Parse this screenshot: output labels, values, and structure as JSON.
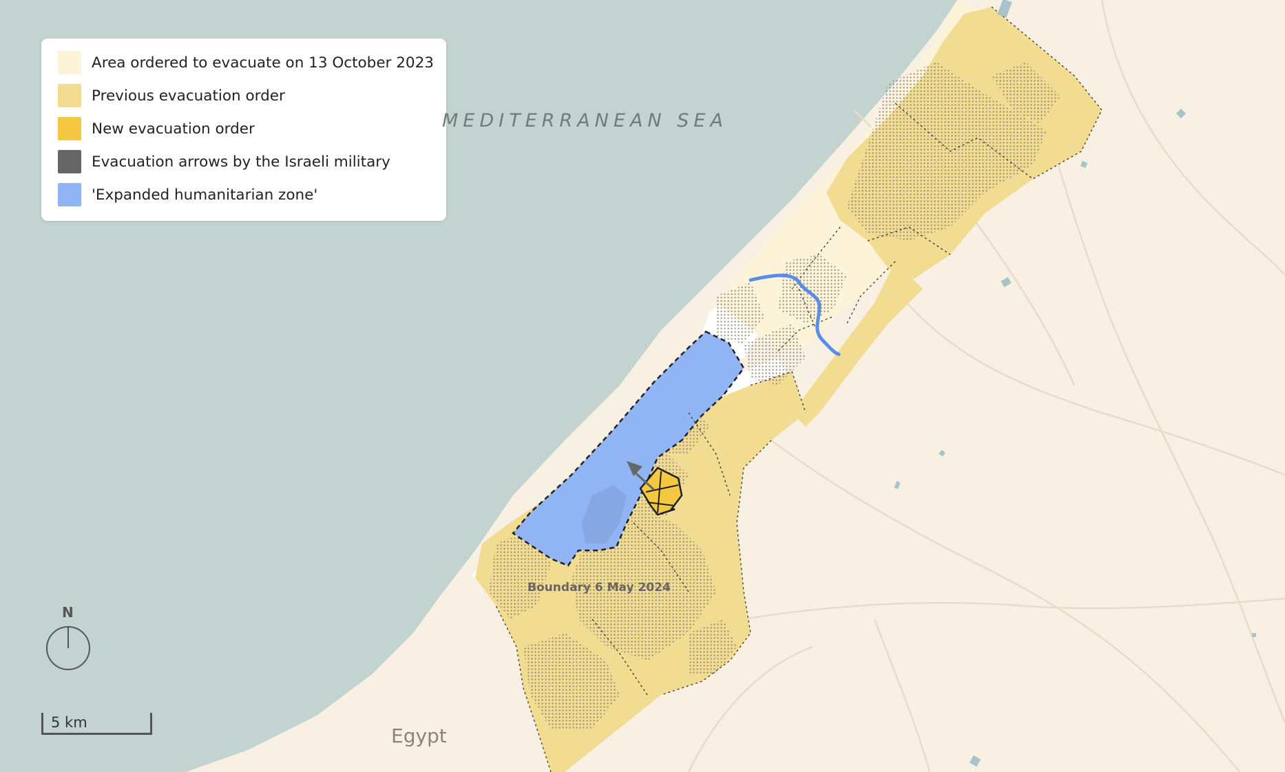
{
  "legend": {
    "items": [
      {
        "label": "Area ordered to evacuate on 13 October 2023",
        "color": "#fdf3d9"
      },
      {
        "label": "Previous evacuation order",
        "color": "#f2dc91"
      },
      {
        "label": "New evacuation order",
        "color": "#f5c842"
      },
      {
        "label": "Evacuation arrows by the Israeli military",
        "color": "#666666"
      },
      {
        "label": "'Expanded humanitarian zone'",
        "color": "#91b4f5"
      }
    ]
  },
  "labels": {
    "sea": "MEDITERRANEAN SEA",
    "egypt": "Egypt",
    "boundary": "Boundary 6 May 2024",
    "north": "N",
    "scale": "5 km"
  },
  "colors": {
    "sea": "#c3d3d0",
    "land": "#f8f1e3",
    "roads": "#e6dcc8",
    "wadi": "#5b8de8",
    "built_up": "#8d8678"
  }
}
